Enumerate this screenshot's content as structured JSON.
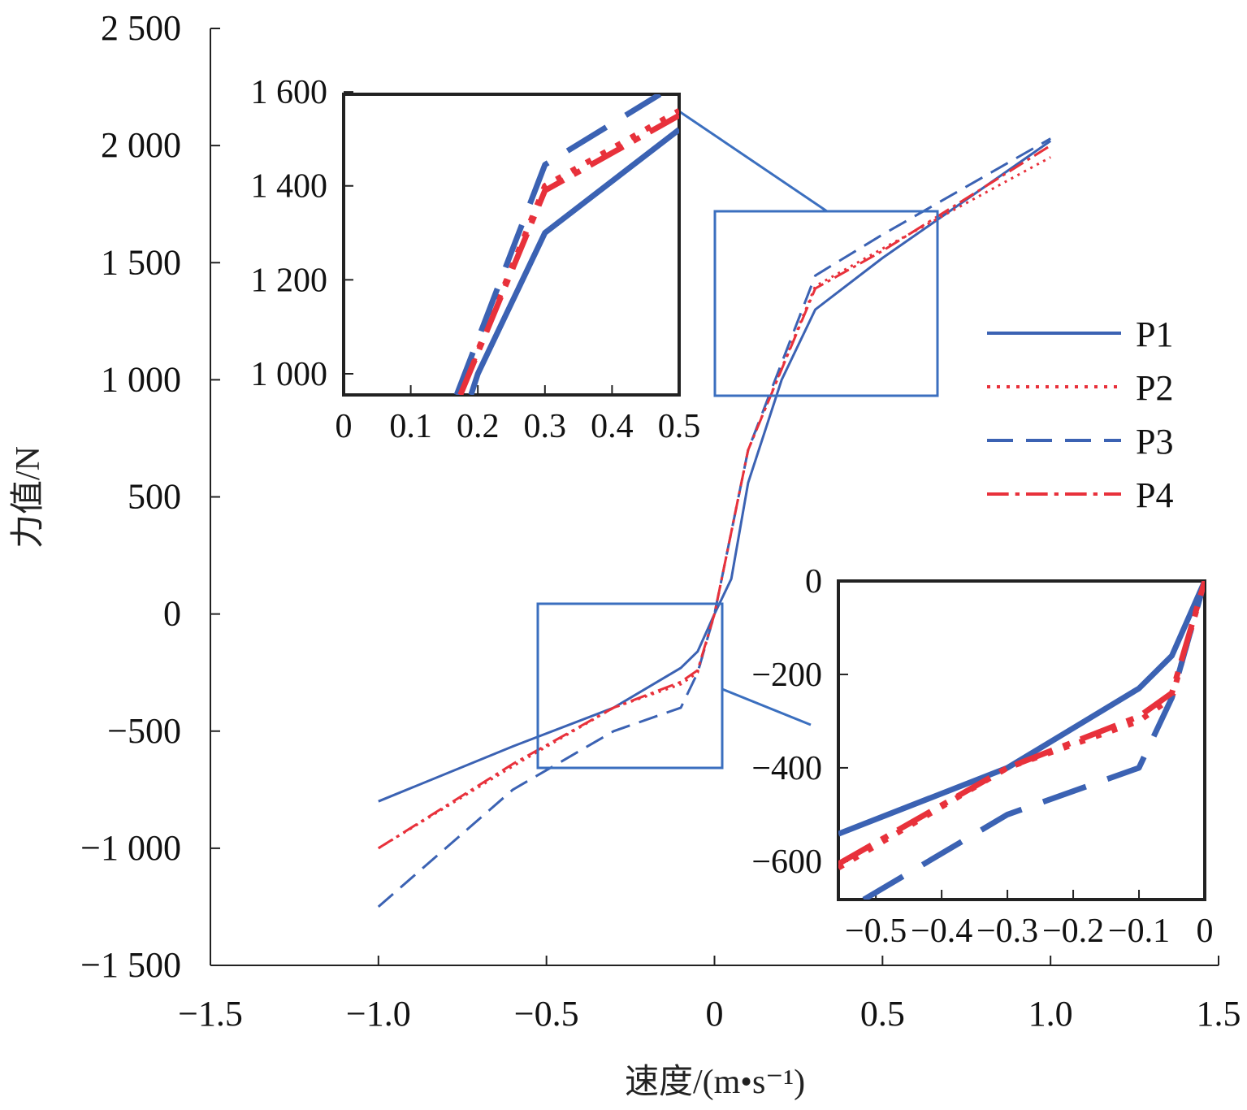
{
  "chart_data": {
    "type": "line",
    "xlabel": "速度/(m•s⁻¹)",
    "ylabel": "力值/N",
    "xlim": [
      -1.5,
      1.5
    ],
    "ylim": [
      -1500,
      2500
    ],
    "xticks": [
      -1.5,
      -1.0,
      -0.5,
      0,
      0.5,
      1.0,
      1.5
    ],
    "xtick_labels": [
      "−1.5",
      "−1.0",
      "−0.5",
      "0",
      "0.5",
      "1.0",
      "1.5"
    ],
    "yticks": [
      2500,
      2000,
      1500,
      1000,
      500,
      0,
      -500,
      -1000,
      -1500
    ],
    "ytick_labels": [
      "2 500",
      "2 000",
      "1 500",
      "1 000",
      "500",
      "0",
      "−500",
      "−1 000",
      "−1 500"
    ],
    "grid": false,
    "legend_position": "right",
    "colors": {
      "blue": "#3b62b3",
      "red": "#e8313b"
    },
    "series": [
      {
        "name": "P1",
        "color": "#3b62b3",
        "style": "solid",
        "x": [
          -1.0,
          -0.6,
          -0.3,
          -0.1,
          -0.05,
          0,
          0.05,
          0.1,
          0.2,
          0.3,
          0.5,
          1.0
        ],
        "y": [
          -800,
          -565,
          -400,
          -230,
          -160,
          0,
          150,
          560,
          1000,
          1300,
          1520,
          2020
        ]
      },
      {
        "name": "P2",
        "color": "#e8313b",
        "style": "dotted",
        "x": [
          -1.0,
          -0.6,
          -0.3,
          -0.1,
          -0.05,
          0,
          0.05,
          0.1,
          0.3,
          0.5,
          1.0
        ],
        "y": [
          -1000,
          -650,
          -400,
          -300,
          -250,
          0,
          350,
          700,
          1400,
          1560,
          1950
        ]
      },
      {
        "name": "P3",
        "color": "#3b62b3",
        "style": "dashed",
        "x": [
          -1.0,
          -0.6,
          -0.3,
          -0.1,
          -0.05,
          0,
          0.05,
          0.1,
          0.3,
          0.5,
          1.0
        ],
        "y": [
          -1250,
          -750,
          -500,
          -400,
          -250,
          0,
          350,
          700,
          1445,
          1620,
          2030
        ]
      },
      {
        "name": "P4",
        "color": "#e8313b",
        "style": "dashdot",
        "x": [
          -1.0,
          -0.6,
          -0.3,
          -0.1,
          -0.05,
          0,
          0.05,
          0.1,
          0.3,
          0.5,
          1.0
        ],
        "y": [
          -1000,
          -640,
          -400,
          -290,
          -240,
          0,
          350,
          700,
          1390,
          1550,
          2000
        ]
      }
    ],
    "insets": [
      {
        "xlim": [
          0,
          0.5
        ],
        "ylim": [
          955,
          1595
        ],
        "xticks": [
          0,
          0.1,
          0.2,
          0.3,
          0.4,
          0.5
        ],
        "xtick_labels": [
          "0",
          "0.1",
          "0.2",
          "0.3",
          "0.4",
          "0.5"
        ],
        "yticks": [
          1600,
          1400,
          1200,
          1000
        ],
        "ytick_labels": [
          "1 600",
          "1 400",
          "1 200",
          "1 000"
        ]
      },
      {
        "xlim": [
          -0.557,
          0
        ],
        "ylim": [
          -682,
          0
        ],
        "xticks": [
          -0.5,
          -0.4,
          -0.3,
          -0.2,
          -0.1,
          0
        ],
        "xtick_labels": [
          "−0.5",
          "−0.4",
          "−0.3",
          "−0.2",
          "−0.1",
          "0"
        ],
        "yticks": [
          0,
          -200,
          -400,
          -600
        ],
        "ytick_labels": [
          "0",
          "−200",
          "−400",
          "−600"
        ]
      }
    ]
  }
}
